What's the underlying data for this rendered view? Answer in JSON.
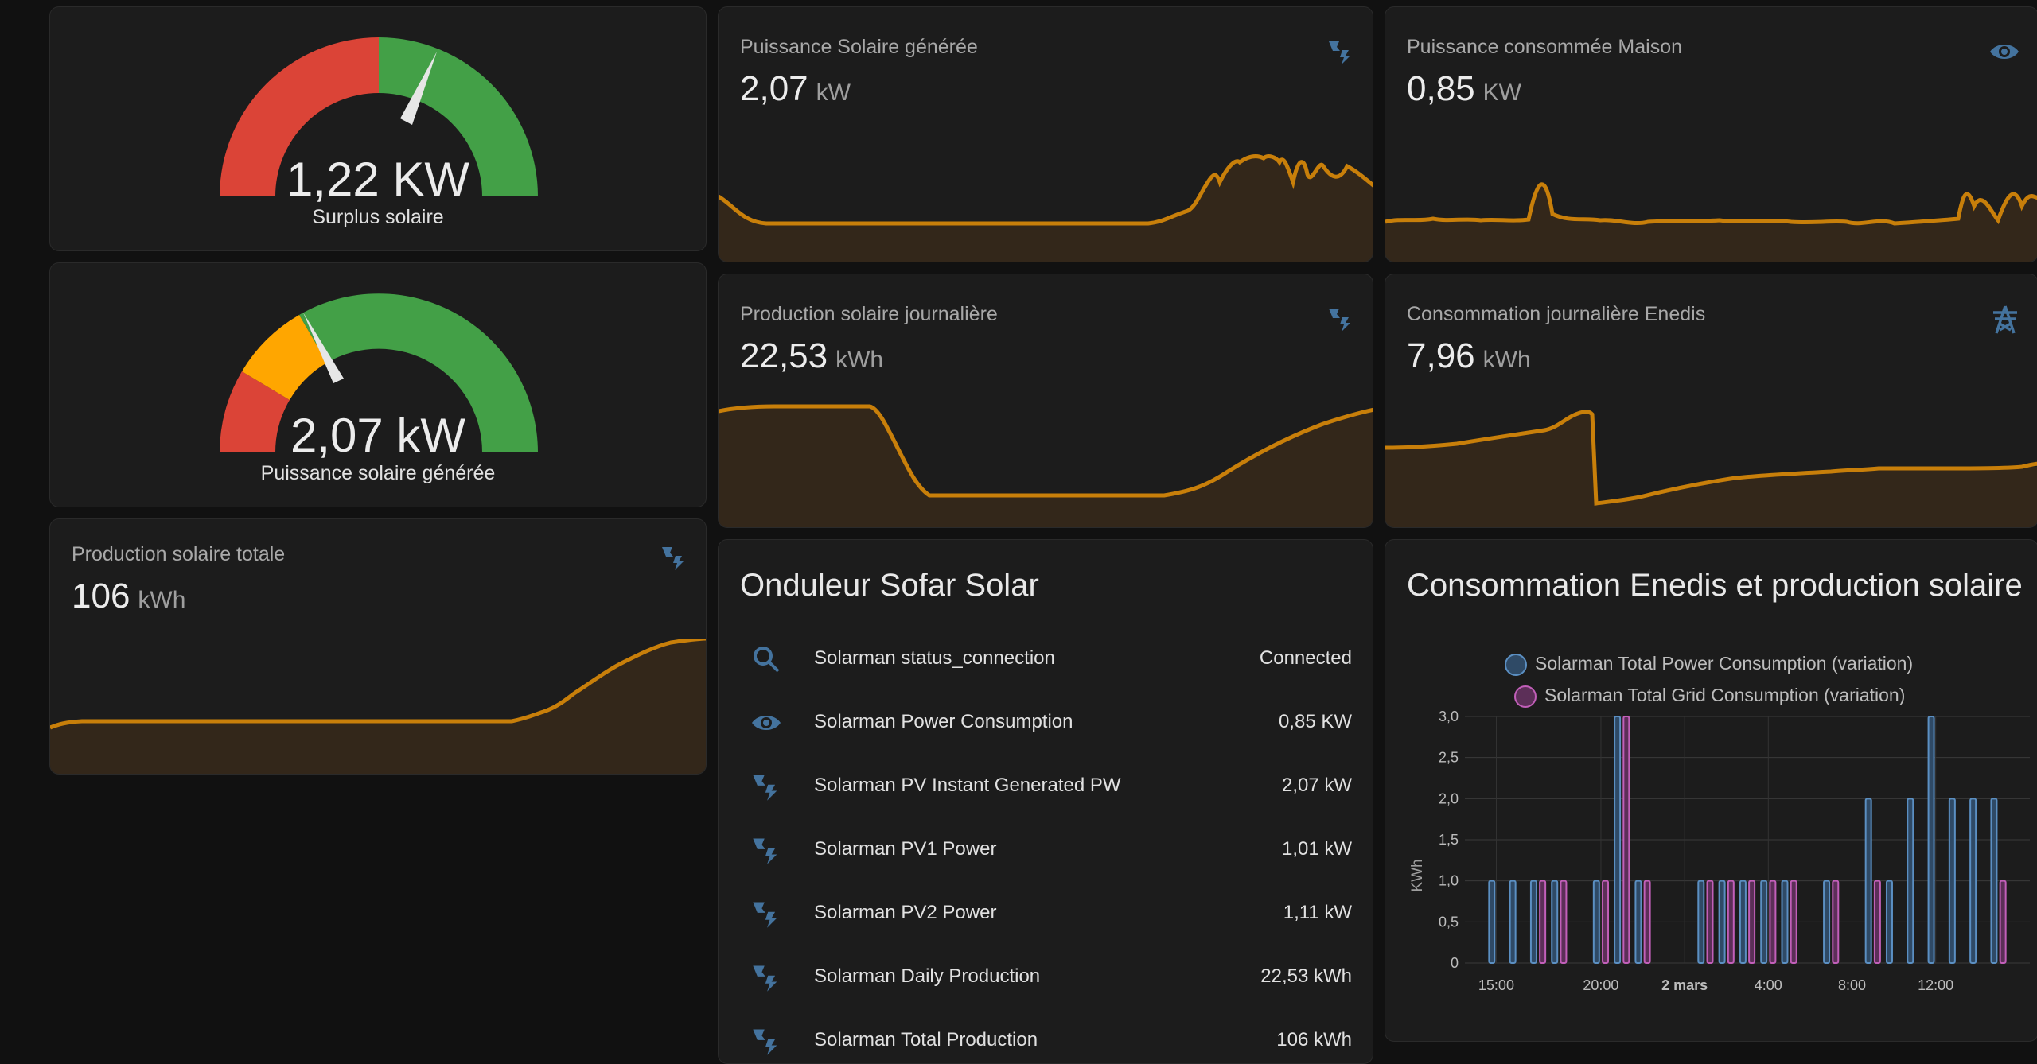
{
  "gauges": [
    {
      "value": "1,22 KW",
      "label": "Surplus solaire",
      "level": 0.68
    },
    {
      "value": "2,07 kW",
      "label": "Puissance solaire générée",
      "level": 0.3
    }
  ],
  "sensors": {
    "solar_power": {
      "name": "Puissance Solaire générée",
      "value": "2,07",
      "unit": "kW",
      "icon": "solar-power-icon"
    },
    "house_power": {
      "name": "Puissance consommée Maison",
      "value": "0,85",
      "unit": "KW",
      "icon": "eye-icon"
    },
    "daily_production": {
      "name": "Production solaire journalière",
      "value": "22,53",
      "unit": "kWh",
      "icon": "solar-power-icon"
    },
    "daily_enedis": {
      "name": "Consommation journalière Enedis",
      "value": "7,96",
      "unit": "kWh",
      "icon": "transmission-tower-icon"
    },
    "total_production": {
      "name": "Production solaire totale",
      "value": "106",
      "unit": "kWh",
      "icon": "solar-power-icon"
    }
  },
  "inverter": {
    "title": "Onduleur Sofar Solar",
    "rows": [
      {
        "icon": "search-icon",
        "name": "Solarman status_connection",
        "state": "Connected"
      },
      {
        "icon": "eye-icon",
        "name": "Solarman Power Consumption",
        "state": "0,85 KW"
      },
      {
        "icon": "solar-power-icon",
        "name": "Solarman PV Instant Generated PW",
        "state": "2,07 kW"
      },
      {
        "icon": "solar-power-icon",
        "name": "Solarman PV1 Power",
        "state": "1,01 kW"
      },
      {
        "icon": "solar-power-icon",
        "name": "Solarman PV2 Power",
        "state": "1,11 kW"
      },
      {
        "icon": "solar-power-icon",
        "name": "Solarman Daily Production",
        "state": "22,53 kWh"
      },
      {
        "icon": "solar-power-icon",
        "name": "Solarman Total Production",
        "state": "106 kWh"
      }
    ]
  },
  "chart_card": {
    "title": "Consommation Enedis et production solaire"
  },
  "colors": {
    "accent": "#c87f0a",
    "icon": "#44739e",
    "gauge_red": "#db4437",
    "gauge_orange": "#ffa600",
    "gauge_green": "#43a047",
    "series_blue": "#5b8fc2",
    "series_pink": "#c25fb9"
  },
  "chart_data": {
    "type": "bar",
    "ylabel": "KWh",
    "ylim": [
      0,
      3
    ],
    "yticks": [
      "3,0",
      "2,5",
      "2,0",
      "1,5",
      "1,0",
      "0,5",
      "0"
    ],
    "xticks": [
      {
        "label": "15:00",
        "x": 1
      },
      {
        "label": "20:00",
        "x": 6
      },
      {
        "label": "2 mars",
        "x": 10
      },
      {
        "label": "4:00",
        "x": 14
      },
      {
        "label": "8:00",
        "x": 18
      },
      {
        "label": "12:00",
        "x": 22
      }
    ],
    "x": [
      0,
      1,
      2,
      3,
      4,
      5,
      6,
      7,
      8,
      9,
      10,
      11,
      12,
      13,
      14,
      15,
      16,
      17,
      18,
      19,
      20,
      21,
      22,
      23,
      24,
      25,
      26
    ],
    "series": [
      {
        "name": "Solarman Total Power Consumption (variation)",
        "color": "#5b8fc2",
        "values": [
          0,
          1,
          1,
          1,
          1,
          0,
          1,
          3,
          1,
          0,
          0,
          1,
          1,
          1,
          1,
          1,
          0,
          1,
          0,
          2,
          1,
          2,
          3,
          2,
          2,
          2,
          0
        ]
      },
      {
        "name": "Solarman Total Grid Consumption (variation)",
        "color": "#c25fb9",
        "values": [
          0,
          0,
          0,
          1,
          1,
          0,
          1,
          3,
          1,
          0,
          0,
          1,
          1,
          1,
          1,
          1,
          0,
          1,
          0,
          1,
          0,
          0,
          0,
          0,
          0,
          1,
          0
        ]
      }
    ]
  }
}
